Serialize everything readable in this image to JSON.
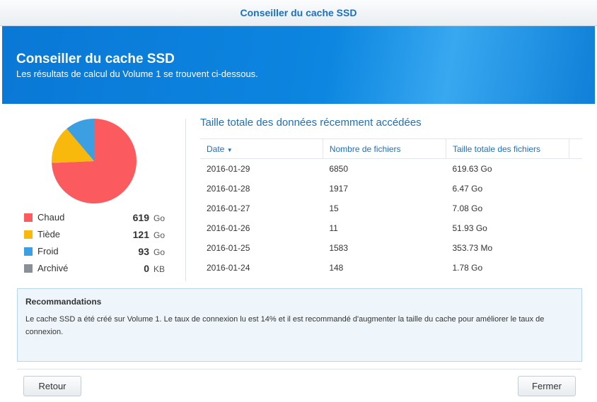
{
  "window_title": "Conseiller du cache SSD",
  "header": {
    "title": "Conseiller du cache SSD",
    "subtitle": "Les résultats de calcul du Volume 1 se trouvent ci-dessous."
  },
  "usage": {
    "items": [
      {
        "name": "Chaud",
        "value": 619,
        "unit": "Go",
        "color": "#fb5a5f"
      },
      {
        "name": "Tiède",
        "value": 121,
        "unit": "Go",
        "color": "#f8b80c"
      },
      {
        "name": "Froid",
        "value": 93,
        "unit": "Go",
        "color": "#3c9fe2"
      },
      {
        "name": "Archivé",
        "value": 0,
        "unit": "KB",
        "color": "#8a9097"
      }
    ]
  },
  "table": {
    "title": "Taille totale des données récemment accédées",
    "columns": [
      "Date",
      "Nombre de fichiers",
      "Taille totale des fichiers"
    ],
    "rows": [
      [
        "2016-01-29",
        "6850",
        "619.63 Go"
      ],
      [
        "2016-01-28",
        "1917",
        "6.47 Go"
      ],
      [
        "2016-01-27",
        "15",
        "7.08 Go"
      ],
      [
        "2016-01-26",
        "11",
        "51.93 Go"
      ],
      [
        "2016-01-25",
        "1583",
        "353.73 Mo"
      ],
      [
        "2016-01-24",
        "148",
        "1.78 Go"
      ]
    ]
  },
  "recommendations": {
    "title": "Recommandations",
    "text": "Le cache SSD a été créé sur Volume 1. Le taux de connexion lu est 14% et il est recommandé d'augmenter la taille du cache pour améliorer le taux de connexion."
  },
  "buttons": {
    "back": "Retour",
    "close": "Fermer"
  }
}
